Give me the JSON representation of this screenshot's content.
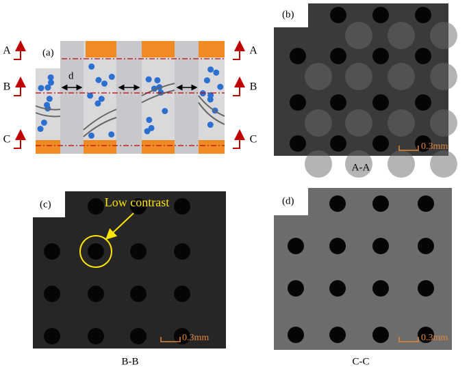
{
  "panels": [
    {
      "label": "(a)",
      "left_markers": [
        "A",
        "B",
        "C"
      ],
      "right_markers": [
        "A",
        "B",
        "C"
      ],
      "gap_label": "d"
    },
    {
      "label": "(b)",
      "scale_bar": "0.3mm",
      "caption": "A-A"
    },
    {
      "label": "(c)",
      "scale_bar": "0.3mm",
      "caption": "B-B",
      "annotation": "Low contrast"
    },
    {
      "label": "(d)",
      "scale_bar": "0.3mm",
      "caption": "C-C"
    }
  ]
}
